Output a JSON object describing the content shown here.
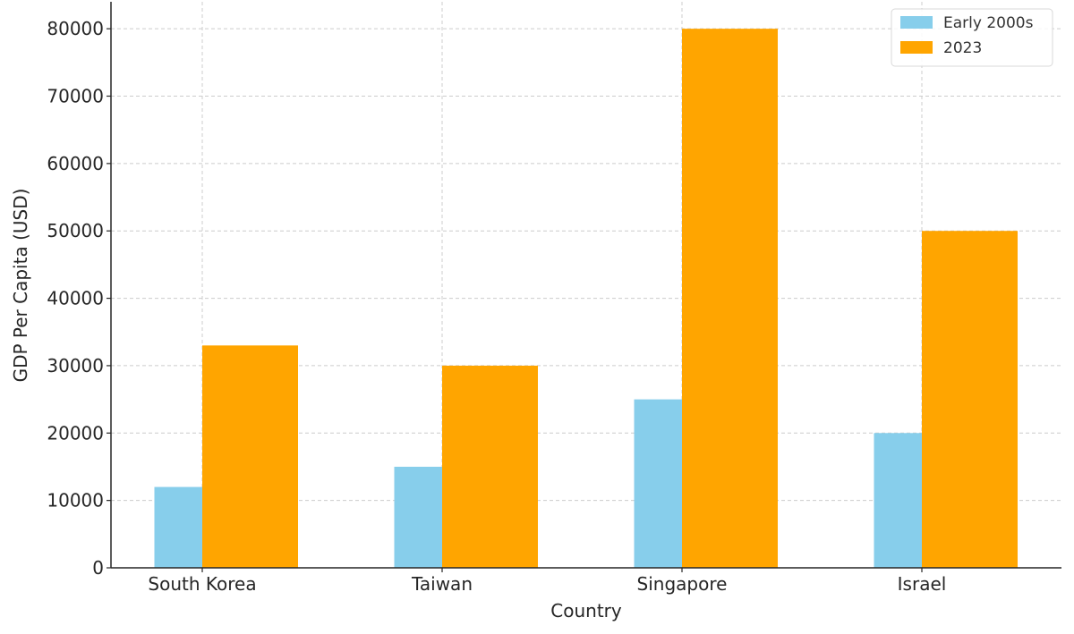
{
  "chart_data": {
    "type": "bar",
    "title": "",
    "xlabel": "Country",
    "ylabel": "GDP Per Capita (USD)",
    "categories": [
      "South Korea",
      "Taiwan",
      "Singapore",
      "Israel"
    ],
    "series": [
      {
        "name": "Early 2000s",
        "color": "#87ceeb",
        "values": [
          12000,
          15000,
          25000,
          20000
        ]
      },
      {
        "name": "2023",
        "color": "#ffa500",
        "values": [
          33000,
          30000,
          80000,
          50000
        ]
      }
    ],
    "ylim": [
      0,
      84000
    ],
    "yticks": [
      0,
      10000,
      20000,
      30000,
      40000,
      50000,
      60000,
      70000,
      80000
    ],
    "grid": true,
    "legend_position": "top-right"
  }
}
